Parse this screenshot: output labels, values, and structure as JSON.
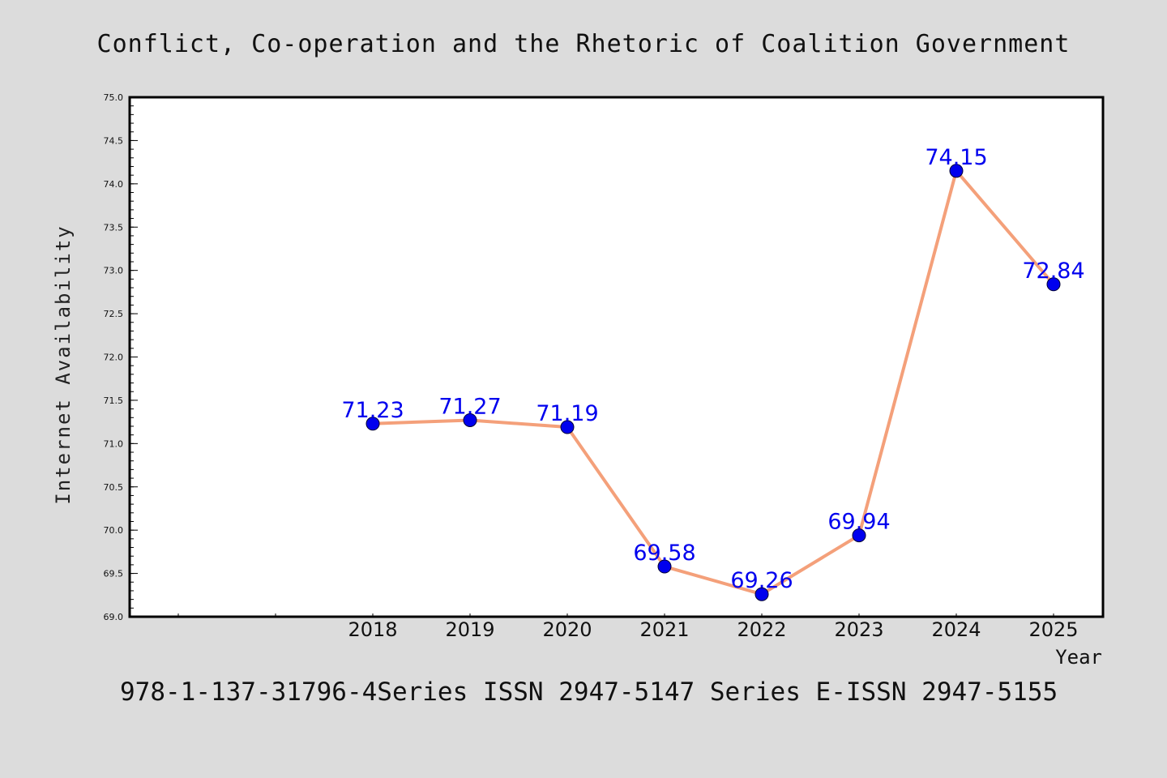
{
  "chart_data": {
    "type": "line",
    "title": "Conflict, Co-operation and the Rhetoric of Coalition Government",
    "xlabel": "Year",
    "ylabel": "Internet Availability",
    "footer": "978-1-137-31796-4Series ISSN 2947-5147 Series E-ISSN 2947-5155",
    "x": [
      "2018",
      "2019",
      "2020",
      "2021",
      "2022",
      "2023",
      "2024",
      "2025"
    ],
    "series": [
      {
        "values": [
          71.23,
          71.27,
          71.19,
          69.58,
          69.26,
          69.94,
          74.15,
          72.84
        ]
      }
    ],
    "data_labels": [
      "71.23",
      "71.27",
      "71.19",
      "69.58",
      "69.26",
      "69.94",
      "74.15",
      "72.84"
    ],
    "y_ticks": [
      "69.0",
      "69.5",
      "70.0",
      "70.5",
      "71.0",
      "71.5",
      "72.0",
      "72.5",
      "73.0",
      "73.5",
      "74.0",
      "74.5",
      "75.0"
    ],
    "ylim": [
      69.0,
      75.0
    ],
    "grid": false,
    "legend": "none",
    "colors": {
      "line": "#f4a07a",
      "marker": "#0000ee",
      "label": "#0000ee",
      "background": "#dcdcdc",
      "plot_background": "#ffffff"
    }
  }
}
